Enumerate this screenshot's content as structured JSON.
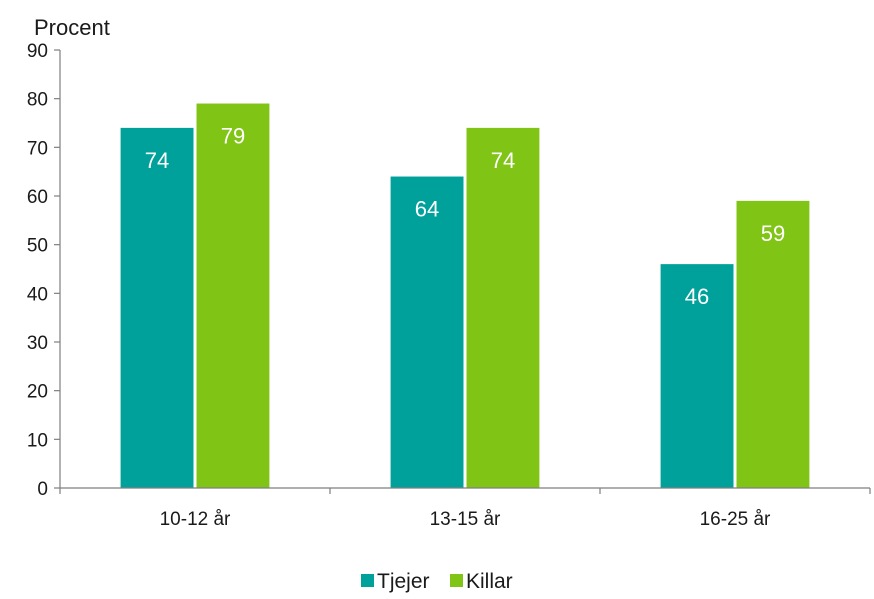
{
  "chart_data": {
    "type": "bar",
    "title": "",
    "xlabel": "",
    "ylabel": "Procent",
    "ylim": [
      0,
      90
    ],
    "yticks": [
      0,
      10,
      20,
      30,
      40,
      50,
      60,
      70,
      80,
      90
    ],
    "categories": [
      "10-12 år",
      "13-15 år",
      "16-25 år"
    ],
    "series": [
      {
        "name": "Tjejer",
        "color": "#00a19a",
        "values": [
          74,
          64,
          46
        ]
      },
      {
        "name": "Killar",
        "color": "#80c416",
        "values": [
          79,
          74,
          59
        ]
      }
    ],
    "data_labels": true,
    "grid": false,
    "legend": "bottom-center"
  }
}
